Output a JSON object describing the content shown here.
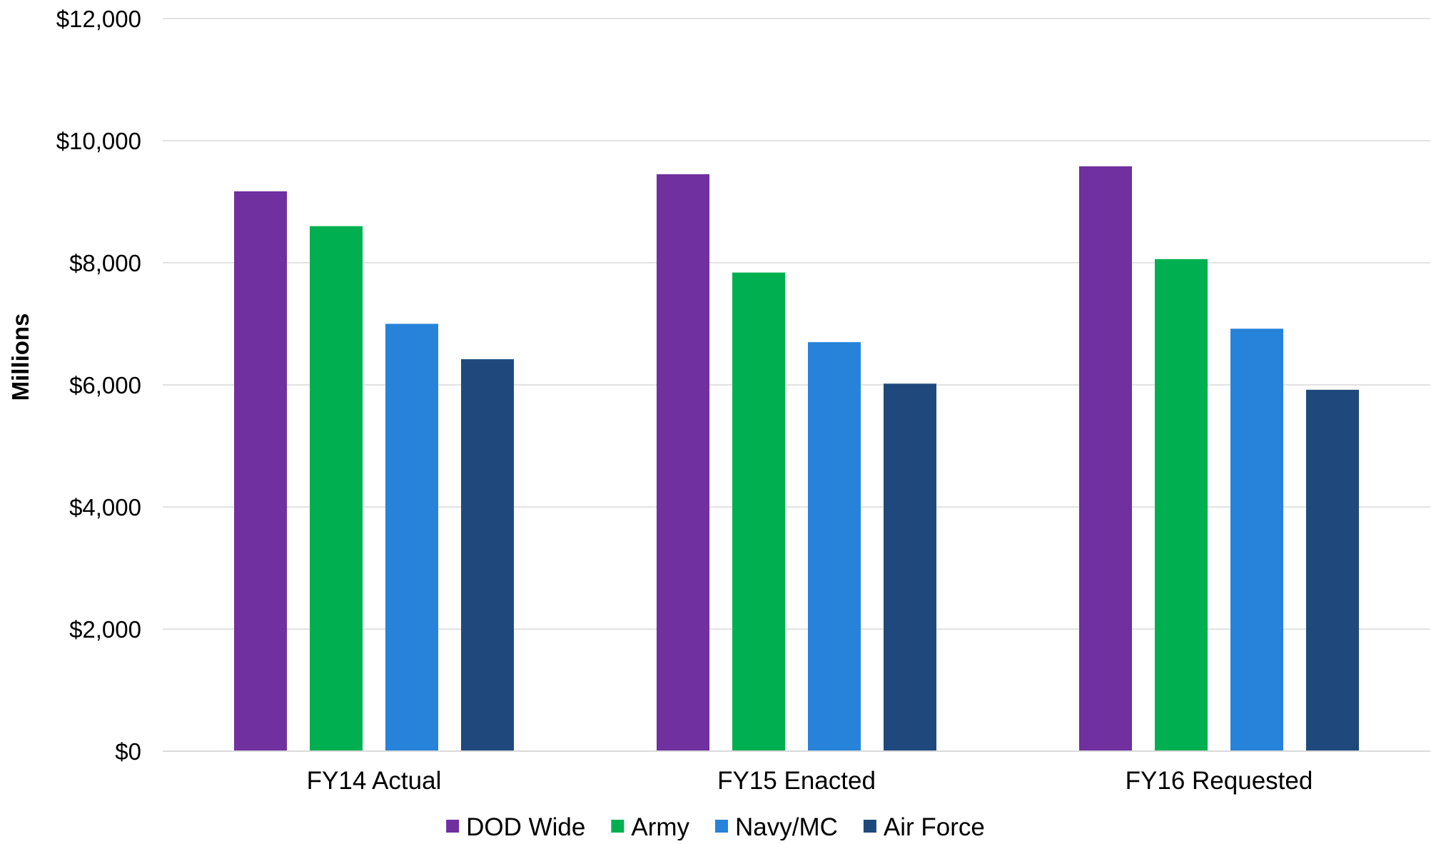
{
  "chart_data": {
    "type": "bar",
    "title": "",
    "xlabel": "",
    "ylabel": "Millions",
    "ylim": [
      0,
      12000
    ],
    "y_ticks": [
      0,
      2000,
      4000,
      6000,
      8000,
      10000,
      12000
    ],
    "y_tick_labels": [
      "$0",
      "$2,000",
      "$4,000",
      "$6,000",
      "$8,000",
      "$10,000",
      "$12,000"
    ],
    "categories": [
      "FY14 Actual",
      "FY15 Enacted",
      "FY16 Requested"
    ],
    "series": [
      {
        "name": "DOD Wide",
        "color": "#7030A0",
        "values": [
          9170,
          9450,
          9580
        ]
      },
      {
        "name": "Army",
        "color": "#00B050",
        "values": [
          8600,
          7840,
          8060
        ]
      },
      {
        "name": "Navy/MC",
        "color": "#2683D9",
        "values": [
          7000,
          6700,
          6920
        ]
      },
      {
        "name": "Air Force",
        "color": "#1F497D",
        "values": [
          6420,
          6020,
          5920
        ]
      }
    ],
    "grid": true,
    "legend_position": "bottom"
  }
}
